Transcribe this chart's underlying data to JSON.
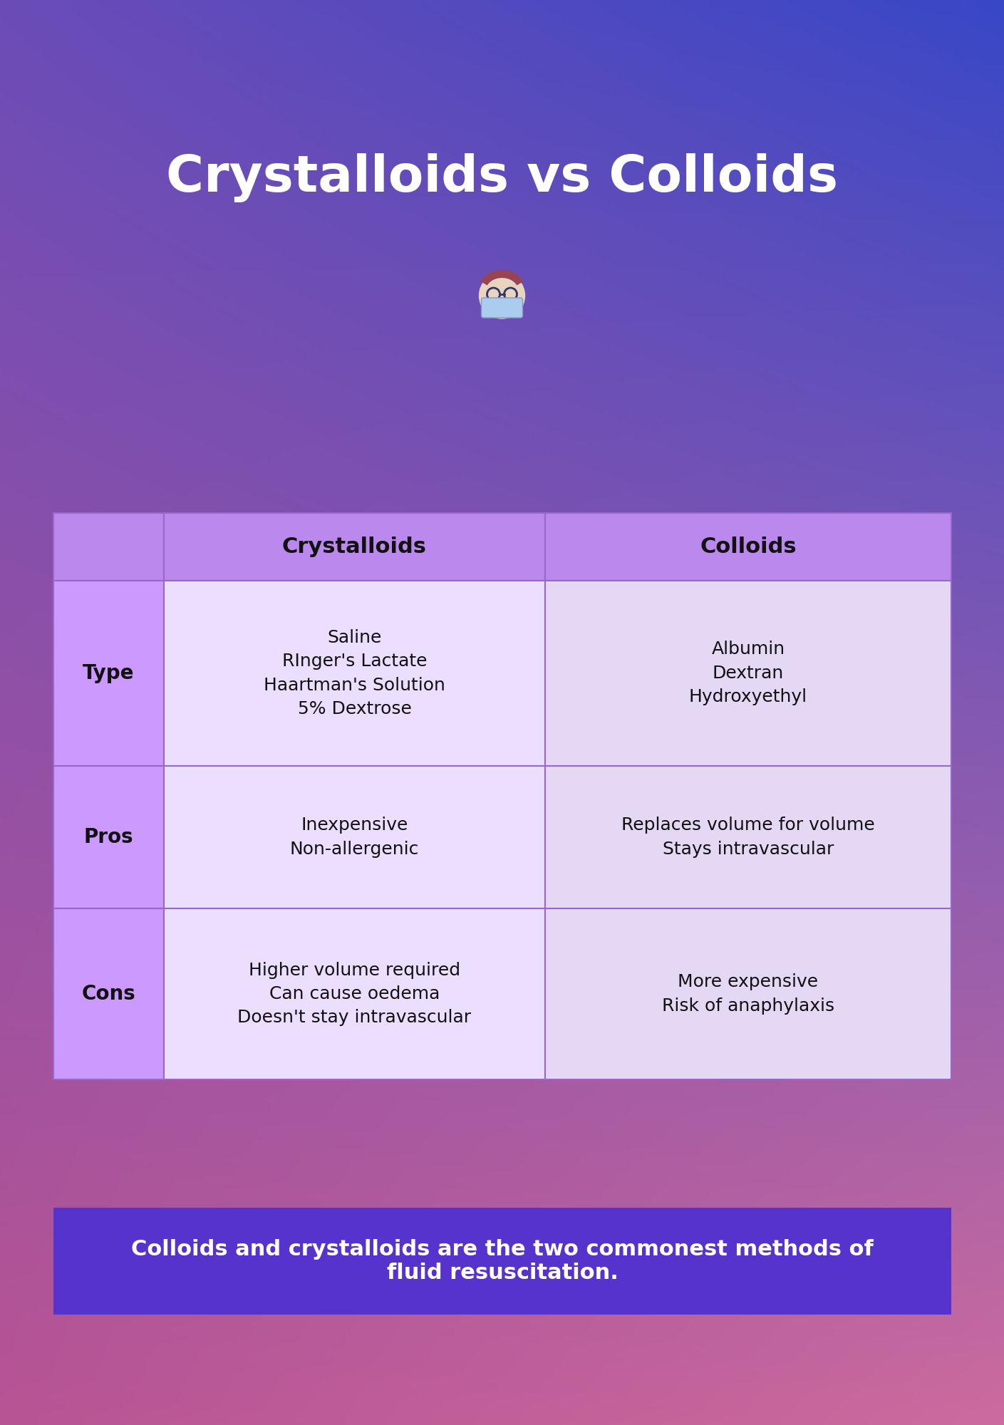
{
  "title": "Crystalloids vs Colloids",
  "title_color": "#ffffff",
  "title_fontsize": 52,
  "header_row_color": "#bb88ee",
  "header_text_color": "#111111",
  "row_label_bg_color": "#cc99ff",
  "cell_bg_color": "#ecdeff",
  "cell_bg_color2": "#e4d8f5",
  "row_labels": [
    "Type",
    "Pros",
    "Cons"
  ],
  "col_headers": [
    "Crystalloids",
    "Colloids"
  ],
  "crystalloids_type": "Saline\nRInger's Lactate\nHaartman's Solution\n5% Dextrose",
  "colloids_type": "Albumin\nDextran\nHydroxyethyl",
  "crystalloids_pros": "Inexpensive\nNon-allergenic",
  "colloids_pros": "Replaces volume for volume\nStays intravascular",
  "crystalloids_cons": "Higher volume required\nCan cause oedema\nDoesn't stay intravascular",
  "colloids_cons": "More expensive\nRisk of anaphylaxis",
  "footer_text": "Colloids and crystalloids are the two commonest methods of\nfluid resuscitation.",
  "footer_bg_color": "#5533cc",
  "footer_text_color": "#ffffff",
  "footer_fontsize": 22,
  "cell_text_fontsize": 18,
  "row_label_fontsize": 20,
  "col_header_fontsize": 22,
  "table_border_color": "#9966cc"
}
